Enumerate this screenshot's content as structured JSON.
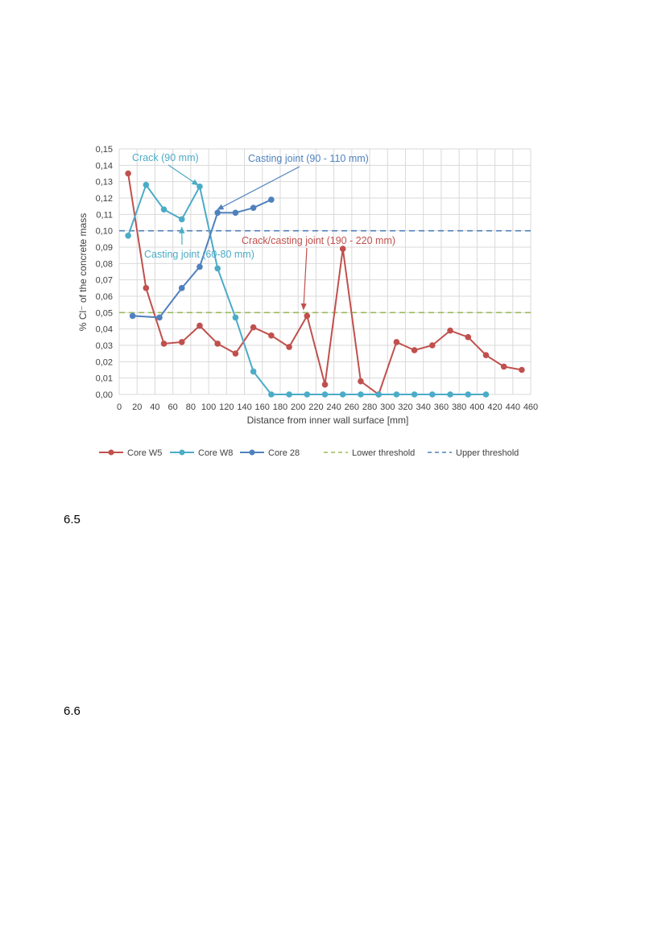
{
  "chart_data": {
    "type": "line",
    "xlabel": "Distance from inner wall surface [mm]",
    "ylabel": "% Cl⁻ of the concrete mass",
    "xlim": [
      0,
      460
    ],
    "ylim": [
      0,
      0.15
    ],
    "xticks": [
      0,
      20,
      40,
      60,
      80,
      100,
      120,
      140,
      160,
      180,
      200,
      220,
      240,
      260,
      280,
      300,
      320,
      340,
      360,
      380,
      400,
      420,
      440,
      460
    ],
    "yticks": [
      0,
      0.01,
      0.02,
      0.03,
      0.04,
      0.05,
      0.06,
      0.07,
      0.08,
      0.09,
      0.1,
      0.11,
      0.12,
      0.13,
      0.14,
      0.15
    ],
    "xtick_labels": [
      "0",
      "20",
      "40",
      "60",
      "80",
      "100",
      "120",
      "140",
      "160",
      "180",
      "200",
      "220",
      "240",
      "260",
      "280",
      "300",
      "320",
      "340",
      "360",
      "380",
      "400",
      "420",
      "440",
      "460"
    ],
    "ytick_labels": [
      "0,00",
      "0,01",
      "0,02",
      "0,03",
      "0,04",
      "0,05",
      "0,06",
      "0,07",
      "0,08",
      "0,09",
      "0,10",
      "0,11",
      "0,12",
      "0,13",
      "0,14",
      "0,15"
    ],
    "grid": true,
    "legend_position": "bottom",
    "series": [
      {
        "name": "Core W5",
        "color": "#c0504d",
        "style": "line-marker",
        "x": [
          10,
          30,
          50,
          70,
          90,
          110,
          130,
          150,
          170,
          190,
          210,
          230,
          250,
          270,
          290,
          310,
          330,
          350,
          370,
          390,
          410,
          430,
          450
        ],
        "y": [
          0.135,
          0.065,
          0.031,
          0.032,
          0.042,
          0.031,
          0.025,
          0.041,
          0.036,
          0.029,
          0.048,
          0.006,
          0.089,
          0.008,
          0.0,
          0.032,
          0.027,
          0.03,
          0.039,
          0.035,
          0.024,
          0.017,
          0.015
        ]
      },
      {
        "name": "Core W8",
        "color": "#4bacc6",
        "style": "line-marker",
        "x": [
          10,
          30,
          50,
          70,
          90,
          110,
          130,
          150,
          170,
          190,
          210,
          230,
          250,
          270,
          290,
          310,
          330,
          350,
          370,
          390,
          410
        ],
        "y": [
          0.097,
          0.128,
          0.113,
          0.107,
          0.127,
          0.077,
          0.047,
          0.014,
          0.0,
          0.0,
          0.0,
          0.0,
          0.0,
          0.0,
          0.0,
          0.0,
          0.0,
          0.0,
          0.0,
          0.0,
          0.0
        ]
      },
      {
        "name": "Core 28",
        "color": "#4f81bd",
        "style": "line-marker",
        "x": [
          15,
          45,
          70,
          90,
          110,
          130,
          150,
          170
        ],
        "y": [
          0.048,
          0.047,
          0.065,
          0.078,
          0.111,
          0.111,
          0.114,
          0.119
        ]
      },
      {
        "name": "Lower threshold",
        "color": "#9bbb59",
        "style": "dashed",
        "y_constant": 0.05
      },
      {
        "name": "Upper threshold",
        "color": "#4f81bd",
        "style": "dashed",
        "y_constant": 0.1
      }
    ],
    "annotations": [
      {
        "text": "Crack (90 mm)",
        "color": "#4bacc6",
        "target_x": 88,
        "target_y": 0.128
      },
      {
        "text": "Casting joint (90 - 110 mm)",
        "color": "#4f81bd",
        "target_x": 110,
        "target_y": 0.113
      },
      {
        "text": "Casting joint (60-80 mm)",
        "color": "#4bacc6",
        "target_x": 70,
        "target_y": 0.102
      },
      {
        "text": "Crack/casting joint (190 - 220 mm)",
        "color": "#c0504d",
        "target_x": 206,
        "target_y": 0.052
      }
    ]
  },
  "sections": [
    {
      "number": "6.5"
    },
    {
      "number": "6.6"
    }
  ]
}
